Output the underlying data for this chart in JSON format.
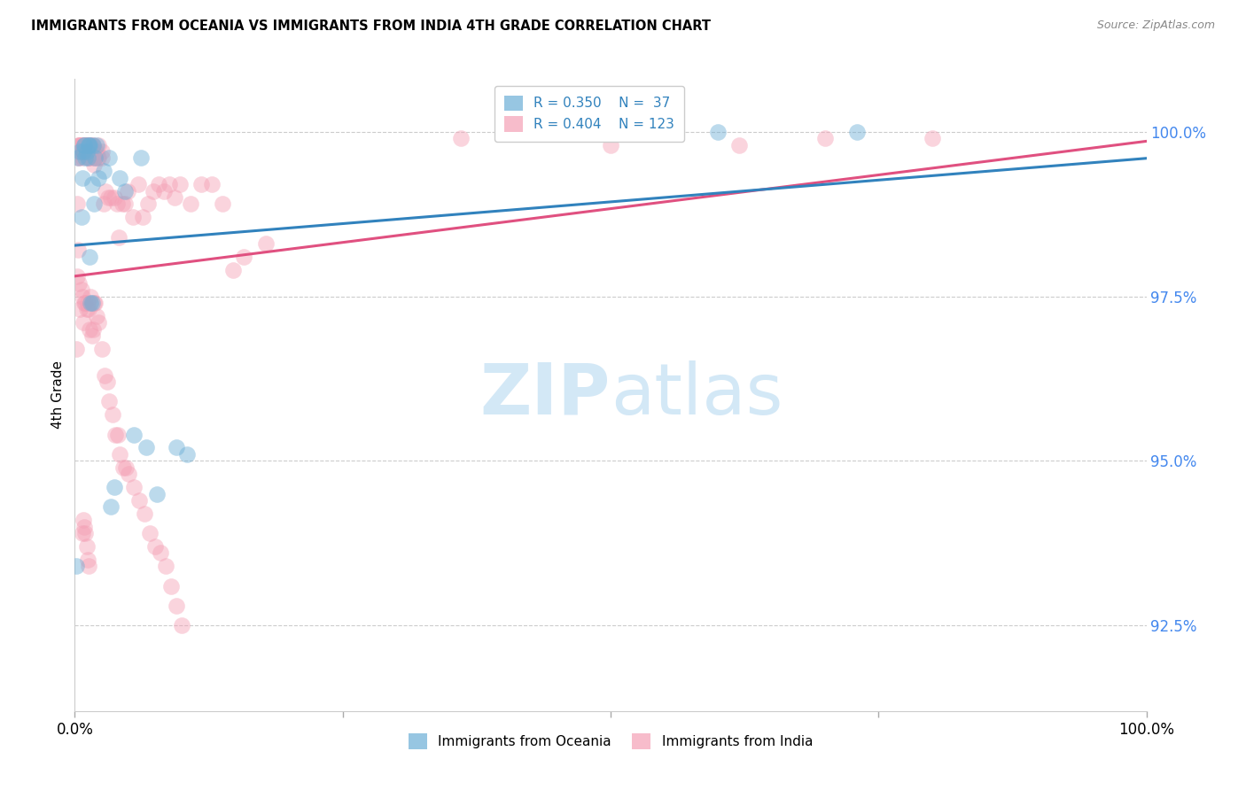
{
  "title": "IMMIGRANTS FROM OCEANIA VS IMMIGRANTS FROM INDIA 4TH GRADE CORRELATION CHART",
  "source": "Source: ZipAtlas.com",
  "ylabel": "4th Grade",
  "ytick_labels": [
    "100.0%",
    "97.5%",
    "95.0%",
    "92.5%"
  ],
  "ytick_values": [
    1.0,
    0.975,
    0.95,
    0.925
  ],
  "xlim": [
    0.0,
    1.0
  ],
  "ylim": [
    0.912,
    1.008
  ],
  "legend_oceania_R": "0.350",
  "legend_oceania_N": "37",
  "legend_india_R": "0.404",
  "legend_india_N": "123",
  "color_oceania": "#6baed6",
  "color_india": "#f4a0b5",
  "color_oceania_line": "#3182bd",
  "color_india_line": "#e05080",
  "color_legend_text": "#3182bd",
  "color_yticks": "#4488ee",
  "oceania_x": [
    0.001,
    0.003,
    0.005,
    0.006,
    0.007,
    0.008,
    0.009,
    0.009,
    0.01,
    0.011,
    0.012,
    0.013,
    0.013,
    0.014,
    0.014,
    0.015,
    0.016,
    0.016,
    0.017,
    0.018,
    0.019,
    0.02,
    0.022,
    0.027,
    0.032,
    0.034,
    0.037,
    0.042,
    0.047,
    0.055,
    0.062,
    0.067,
    0.077,
    0.095,
    0.105,
    0.6,
    0.73
  ],
  "oceania_y": [
    0.934,
    0.996,
    0.997,
    0.987,
    0.993,
    0.997,
    0.998,
    0.998,
    0.996,
    0.997,
    0.996,
    0.998,
    0.998,
    0.998,
    0.981,
    0.974,
    0.974,
    0.992,
    0.998,
    0.989,
    0.996,
    0.998,
    0.993,
    0.994,
    0.996,
    0.943,
    0.946,
    0.993,
    0.991,
    0.954,
    0.996,
    0.952,
    0.945,
    0.952,
    0.951,
    1.0,
    1.0
  ],
  "india_x": [
    0.001,
    0.002,
    0.002,
    0.003,
    0.003,
    0.004,
    0.004,
    0.005,
    0.005,
    0.006,
    0.007,
    0.007,
    0.007,
    0.008,
    0.008,
    0.009,
    0.009,
    0.01,
    0.01,
    0.011,
    0.011,
    0.012,
    0.012,
    0.013,
    0.013,
    0.014,
    0.014,
    0.015,
    0.015,
    0.016,
    0.016,
    0.017,
    0.017,
    0.018,
    0.018,
    0.019,
    0.019,
    0.02,
    0.021,
    0.022,
    0.022,
    0.025,
    0.025,
    0.027,
    0.029,
    0.031,
    0.034,
    0.037,
    0.039,
    0.041,
    0.044,
    0.047,
    0.049,
    0.054,
    0.059,
    0.063,
    0.068,
    0.073,
    0.078,
    0.083,
    0.088,
    0.093,
    0.098,
    0.108,
    0.118,
    0.128,
    0.138,
    0.148,
    0.158,
    0.178,
    0.002,
    0.003,
    0.004,
    0.005,
    0.006,
    0.007,
    0.008,
    0.009,
    0.01,
    0.011,
    0.012,
    0.013,
    0.014,
    0.015,
    0.016,
    0.017,
    0.018,
    0.019,
    0.02,
    0.022,
    0.025,
    0.028,
    0.03,
    0.032,
    0.035,
    0.038,
    0.04,
    0.042,
    0.045,
    0.048,
    0.05,
    0.055,
    0.06,
    0.065,
    0.07,
    0.075,
    0.08,
    0.085,
    0.09,
    0.095,
    0.1,
    0.36,
    0.5,
    0.62,
    0.7,
    0.8,
    0.007,
    0.008,
    0.009,
    0.01,
    0.011,
    0.012,
    0.013
  ],
  "india_y": [
    0.967,
    0.989,
    0.997,
    0.996,
    0.998,
    0.996,
    0.998,
    0.998,
    0.998,
    0.998,
    0.997,
    0.997,
    0.996,
    0.998,
    0.998,
    0.998,
    0.997,
    0.998,
    0.998,
    0.998,
    0.998,
    0.998,
    0.997,
    0.996,
    0.996,
    0.998,
    0.997,
    0.998,
    0.996,
    0.998,
    0.997,
    0.998,
    0.997,
    0.996,
    0.995,
    0.996,
    0.997,
    0.997,
    0.996,
    0.998,
    0.996,
    0.997,
    0.996,
    0.989,
    0.991,
    0.99,
    0.99,
    0.99,
    0.989,
    0.984,
    0.989,
    0.989,
    0.991,
    0.987,
    0.992,
    0.987,
    0.989,
    0.991,
    0.992,
    0.991,
    0.992,
    0.99,
    0.992,
    0.989,
    0.992,
    0.992,
    0.989,
    0.979,
    0.981,
    0.983,
    0.978,
    0.982,
    0.977,
    0.973,
    0.976,
    0.975,
    0.971,
    0.974,
    0.974,
    0.973,
    0.974,
    0.973,
    0.97,
    0.975,
    0.969,
    0.97,
    0.974,
    0.974,
    0.972,
    0.971,
    0.967,
    0.963,
    0.962,
    0.959,
    0.957,
    0.954,
    0.954,
    0.951,
    0.949,
    0.949,
    0.948,
    0.946,
    0.944,
    0.942,
    0.939,
    0.937,
    0.936,
    0.934,
    0.931,
    0.928,
    0.925,
    0.999,
    0.998,
    0.998,
    0.999,
    0.999,
    0.939,
    0.941,
    0.94,
    0.939,
    0.937,
    0.935,
    0.934
  ]
}
